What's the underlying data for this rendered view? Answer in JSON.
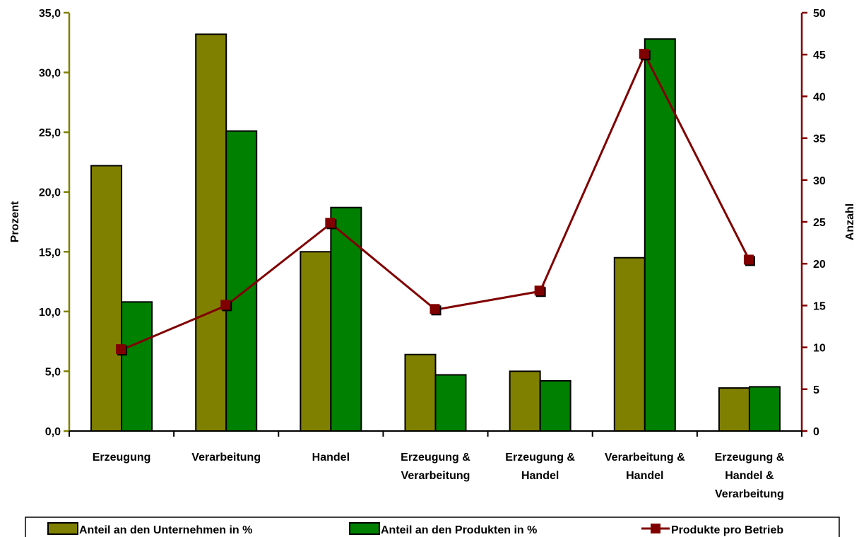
{
  "chart_data": {
    "type": "bar",
    "categories": [
      "Erzeugung",
      "Verarbeitung",
      "Handel",
      "Erzeugung & Verarbeitung",
      "Erzeugung & Handel",
      "Verarbeitung & Handel",
      "Erzeugung & Handel & Verarbeitung"
    ],
    "category_label_lines": [
      [
        "Erzeugung"
      ],
      [
        "Verarbeitung"
      ],
      [
        "Handel"
      ],
      [
        "Erzeugung &",
        "Verarbeitung"
      ],
      [
        "Erzeugung &",
        "Handel"
      ],
      [
        "Verarbeitung &",
        "Handel"
      ],
      [
        "Erzeugung &",
        "Handel &",
        "Verarbeitung"
      ]
    ],
    "series": [
      {
        "name": "Anteil an den Unternehmen in %",
        "type": "bar",
        "axis": "left",
        "color": "#808000",
        "values": [
          22.2,
          33.2,
          15.0,
          6.4,
          5.0,
          14.5,
          3.6
        ]
      },
      {
        "name": "Anteil an den Produkten in %",
        "type": "bar",
        "axis": "left",
        "color": "#008000",
        "values": [
          10.8,
          25.1,
          18.7,
          4.7,
          4.2,
          32.8,
          3.7
        ]
      },
      {
        "name": "Produkte pro Betrieb",
        "type": "line",
        "axis": "right",
        "color": "#800000",
        "values": [
          9.7,
          15.0,
          24.8,
          14.5,
          16.7,
          45.0,
          20.4
        ]
      }
    ],
    "ylabel": "Prozent",
    "y2label": "Anzahl",
    "ylim": [
      0,
      35
    ],
    "y2lim": [
      0,
      50
    ],
    "yticks": [
      "0,0",
      "5,0",
      "10,0",
      "15,0",
      "20,0",
      "25,0",
      "30,0",
      "35,0"
    ],
    "y2ticks": [
      "0",
      "5",
      "10",
      "15",
      "20",
      "25",
      "30",
      "35",
      "40",
      "45",
      "50"
    ],
    "grid": false,
    "legend_position": "bottom",
    "left_axis_color": "#808000",
    "right_axis_color": "#800000"
  }
}
